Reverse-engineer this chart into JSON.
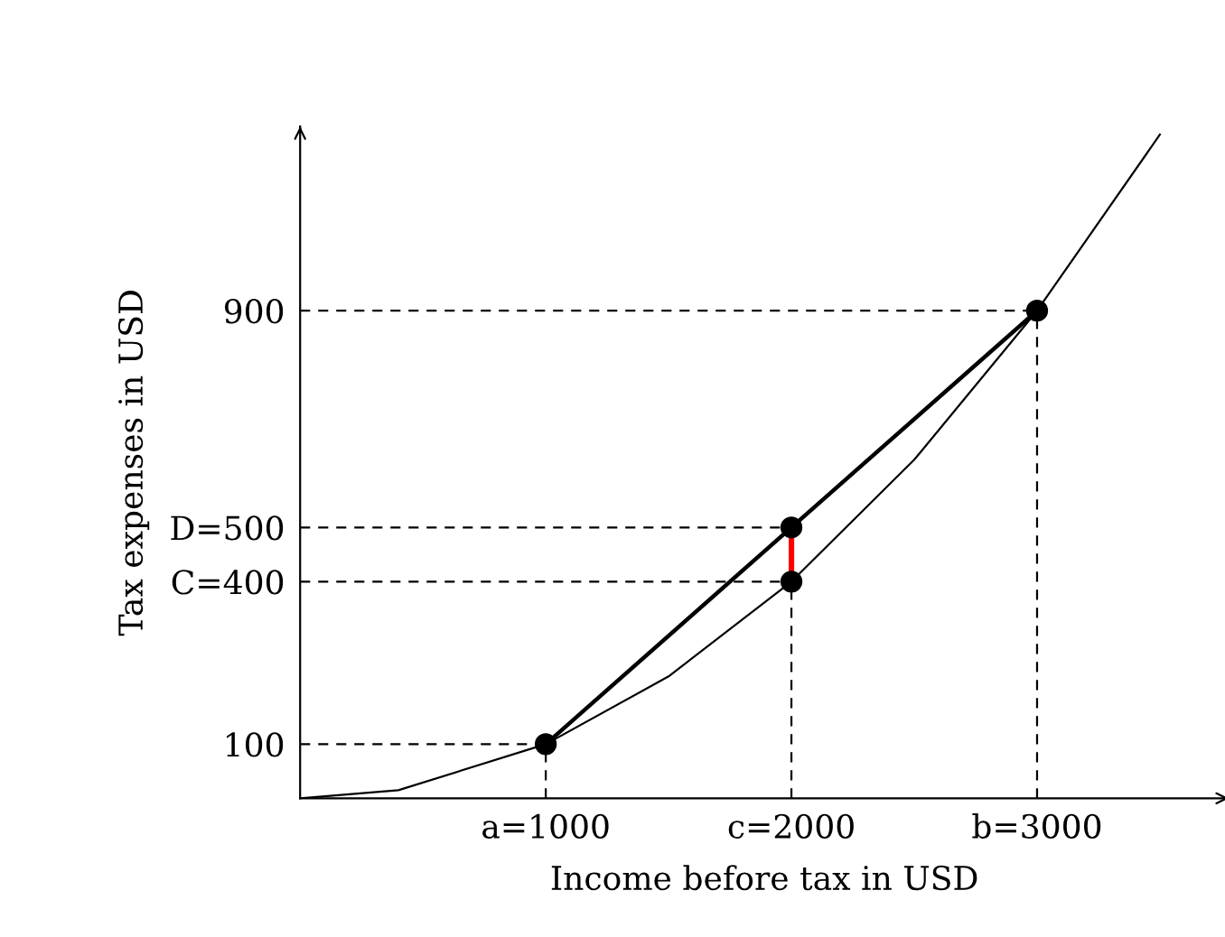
{
  "chart_data": {
    "type": "line",
    "xlabel": "Income before tax in USD",
    "ylabel": "Tax expenses in USD",
    "xlim": [
      0,
      3780
    ],
    "ylim": [
      0,
      1240
    ],
    "xticks": [
      {
        "value": 1000,
        "label": "a=1000"
      },
      {
        "value": 2000,
        "label": "c=2000"
      },
      {
        "value": 3000,
        "label": "b=3000"
      }
    ],
    "yticks": [
      100,
      {
        "value": 400,
        "label": "C=400"
      },
      {
        "value": 500,
        "label": "D=500"
      },
      900
    ],
    "grid": false,
    "legend": false,
    "series": [
      {
        "color": "#000000",
        "x": [
          0,
          400,
          1000,
          1500,
          2000,
          2500,
          3000,
          3500
        ],
        "values": [
          0,
          15,
          100,
          225,
          400,
          625,
          900,
          1225
        ]
      },
      {
        "type": "line",
        "color": "#000000",
        "x": [
          1000,
          3000
        ],
        "values": [
          100,
          900
        ]
      },
      {
        "type": "line",
        "color": "#ff0000",
        "x": [
          2000,
          2000
        ],
        "values": [
          400,
          500
        ]
      },
      {
        "type": "scatter",
        "color": "#000000",
        "marker": "circle",
        "x": [
          1000,
          2000,
          2000,
          3000
        ],
        "values": [
          100,
          400,
          500,
          900
        ]
      }
    ],
    "ref_lines": [
      {
        "axis": "y",
        "value": 100,
        "line_style": "dashed"
      },
      {
        "axis": "y",
        "value": 400,
        "line_style": "dashed"
      },
      {
        "axis": "y",
        "value": 500,
        "line_style": "dashed"
      },
      {
        "axis": "y",
        "value": 900,
        "line_style": "dashed"
      },
      {
        "axis": "x",
        "value": 1000,
        "line_style": "dashed"
      },
      {
        "axis": "x",
        "value": 2000,
        "line_style": "dashed"
      },
      {
        "axis": "x",
        "value": 3000,
        "line_style": "dashed"
      }
    ]
  }
}
